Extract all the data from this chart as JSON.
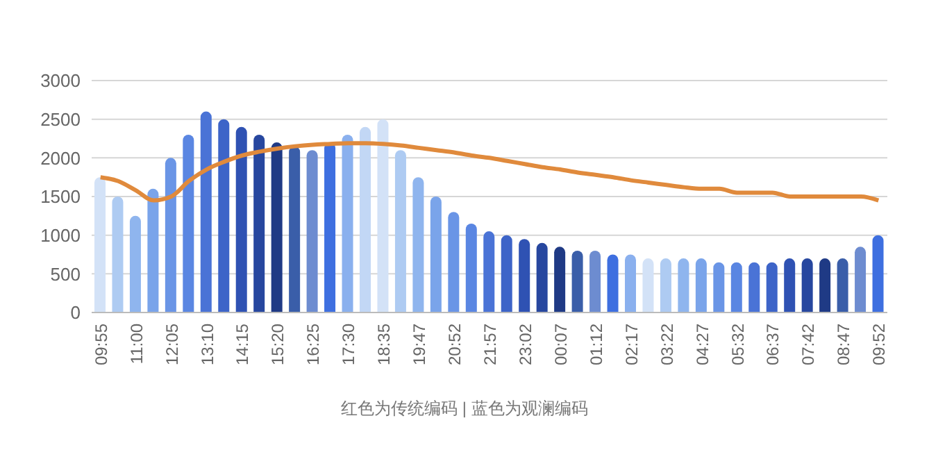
{
  "chart_data": {
    "type": "bar",
    "categories": [
      "09:55",
      null,
      "11:00",
      null,
      "12:05",
      null,
      "13:10",
      null,
      "14:15",
      null,
      "15:20",
      null,
      "16:25",
      null,
      "17:30",
      null,
      "18:35",
      null,
      "19:47",
      null,
      "20:52",
      null,
      "21:57",
      null,
      "23:02",
      null,
      "00:07",
      null,
      "01:12",
      null,
      "02:17",
      null,
      "03:22",
      null,
      "04:27",
      null,
      "05:32",
      null,
      "06:37",
      null,
      "07:42",
      null,
      "08:47",
      null,
      "09:52"
    ],
    "series": [
      {
        "values": [
          1750,
          1500,
          1250,
          1600,
          2000,
          2300,
          2600,
          2500,
          2400,
          2300,
          2200,
          2150,
          2100,
          2200,
          2300,
          2400,
          2500,
          2100,
          1750,
          1500,
          1300,
          1150,
          1050,
          1000,
          950,
          900,
          850,
          800,
          800,
          750,
          750,
          700,
          700,
          700,
          700,
          650,
          650,
          650,
          650,
          700,
          700,
          700,
          700,
          850,
          1000
        ],
        "colors": [
          "#d3e2f7",
          "#aecbf2",
          "#8fb5ee",
          "#7aa4ea",
          "#6a95e6",
          "#5a86e2",
          "#4a73d6",
          "#3d64c8",
          "#2f52b3",
          "#27479f",
          "#1f3a85",
          "#3a5ea9",
          "#6d8cd0",
          "#3e6fe0",
          "#8ab0ee",
          "#c2d7f5",
          "#d3e2f7",
          "#aecbf2",
          "#8fb5ee",
          "#7aa4ea",
          "#6a95e6",
          "#5a86e2",
          "#4a73d6",
          "#3d64c8",
          "#2f52b3",
          "#27479f",
          "#1f3a85",
          "#3a5ea9",
          "#6d8cd0",
          "#3e6fe0",
          "#8ab0ee",
          "#d3e2f7",
          "#aecbf2",
          "#8fb5ee",
          "#7aa4ea",
          "#6a95e6",
          "#5a86e2",
          "#4a73d6",
          "#3d64c8",
          "#2f52b3",
          "#27479f",
          "#1f3a85",
          "#3a5ea9",
          "#6d8cd0",
          "#3e6fe0"
        ]
      },
      {
        "type": "line",
        "color": "#e08a3c",
        "values": [
          1750,
          1700,
          1580,
          1450,
          1500,
          1700,
          1850,
          1950,
          2030,
          2080,
          2120,
          2150,
          2170,
          2180,
          2190,
          2190,
          2180,
          2160,
          2130,
          2100,
          2070,
          2030,
          2000,
          1960,
          1920,
          1880,
          1850,
          1810,
          1780,
          1750,
          1710,
          1680,
          1650,
          1620,
          1600,
          1600,
          1550,
          1550,
          1550,
          1500,
          1500,
          1500,
          1500,
          1500,
          1450
        ]
      }
    ],
    "ylim": [
      0,
      3000
    ],
    "yticks": [
      0,
      500,
      1000,
      1500,
      2000,
      2500,
      3000
    ],
    "grid": "y",
    "annotations": [
      "红色为传统编码 | 蓝色为观澜编码"
    ]
  }
}
